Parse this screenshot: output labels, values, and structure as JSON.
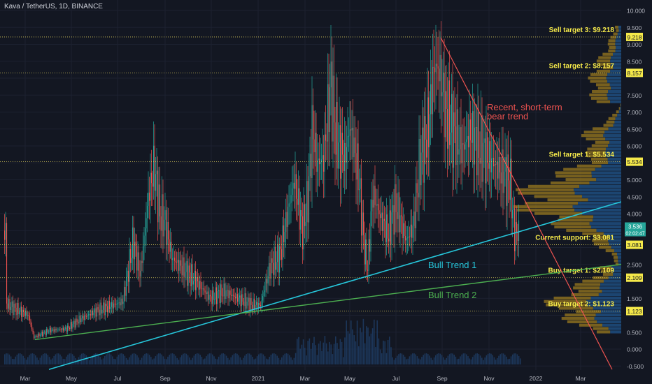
{
  "header": {
    "symbol": "Kava / TetherUS, 1D, BINANCE"
  },
  "price_axis": {
    "ticks": [
      "10.000",
      "9.500",
      "9.000",
      "8.500",
      "8.000",
      "7.500",
      "7.000",
      "6.500",
      "6.000",
      "5.500",
      "5.000",
      "4.500",
      "4.000",
      "3.500",
      "3.000",
      "2.500",
      "2.000",
      "1.500",
      "1.000",
      "0.500",
      "0.000",
      "-0.500"
    ],
    "current_price": "3.536",
    "countdown": "02:02:47"
  },
  "time_axis": [
    "Mar",
    "May",
    "Jul",
    "Sep",
    "Nov",
    "2021",
    "Mar",
    "May",
    "Jul",
    "Sep",
    "Nov",
    "2022",
    "Mar"
  ],
  "levels": [
    {
      "label": "Sell target 3: $9.218",
      "badge": "9.218",
      "value": 9.218
    },
    {
      "label": "Sell target 2: $8.157",
      "badge": "8.157",
      "value": 8.157
    },
    {
      "label": "Sell target 1: $5.534",
      "badge": "5.534",
      "value": 5.534
    },
    {
      "label": "Current support: $3.081",
      "badge": "3.081",
      "value": 3.081
    },
    {
      "label": "Buy target 1: $2.109",
      "badge": "2.109",
      "value": 2.109
    },
    {
      "label": "Buy target 2: $1.123",
      "badge": "1.123",
      "value": 1.123
    }
  ],
  "annotations": {
    "bear": [
      "Recent, short-term",
      "bear trend"
    ],
    "bull1": "Bull Trend 1",
    "bull2": "Bull Trend 2"
  },
  "colors": {
    "background": "#131722",
    "up": "#26a69a",
    "down": "#ef5350",
    "bull1": "#26c6da",
    "bull2": "#4caf50",
    "bear": "#ef5350",
    "label": "#f5e94a",
    "profile_left": "#8a6d1f",
    "profile_right": "#1e4a7a"
  },
  "chart_data": {
    "type": "candlestick",
    "symbol": "KAVA/USDT",
    "interval": "1D",
    "ylim": [
      -0.5,
      10.0
    ],
    "x": [
      "2020-02",
      "2020-03",
      "2020-04",
      "2020-05",
      "2020-06",
      "2020-07",
      "2020-08",
      "2020-09",
      "2020-10",
      "2020-11",
      "2020-12",
      "2021-01",
      "2021-02",
      "2021-03",
      "2021-04",
      "2021-05",
      "2021-06",
      "2021-07",
      "2021-08",
      "2021-09",
      "2021-10",
      "2021-11",
      "2021-12"
    ],
    "close_approx": [
      1.25,
      0.45,
      0.55,
      0.85,
      1.1,
      2.1,
      3.6,
      3.2,
      1.6,
      1.4,
      1.2,
      2.1,
      5.0,
      5.8,
      6.8,
      4.6,
      3.4,
      3.9,
      5.5,
      8.0,
      6.4,
      5.2,
      3.5
    ],
    "horizontal_levels": [
      9.218,
      8.157,
      5.534,
      3.081,
      2.109,
      1.123
    ],
    "trend_lines": [
      {
        "name": "Bull Trend 1",
        "from": [
          "2020-03",
          -0.6
        ],
        "to": [
          "2022-04",
          4.35
        ]
      },
      {
        "name": "Bull Trend 2",
        "from": [
          "2020-03",
          0.25
        ],
        "to": [
          "2022-04",
          2.5
        ]
      },
      {
        "name": "Recent, short-term bear trend",
        "from": [
          "2021-09",
          9.2
        ],
        "to": [
          "2022-04",
          -0.6
        ]
      }
    ]
  }
}
